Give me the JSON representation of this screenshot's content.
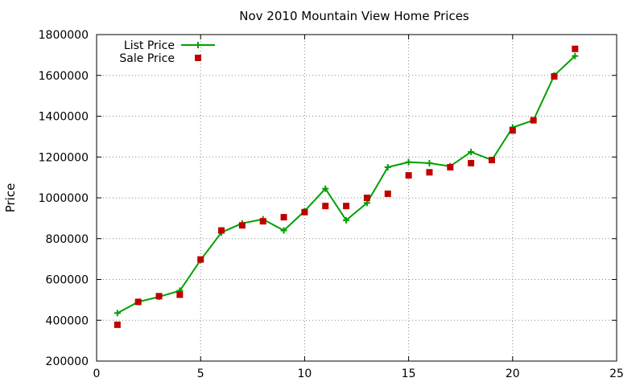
{
  "chart_data": {
    "type": "line",
    "title": "Nov 2010 Mountain View Home Prices",
    "xlabel": "",
    "ylabel": "Price",
    "xlim": [
      0,
      25
    ],
    "ylim": [
      200000,
      1800000
    ],
    "x_ticks": [
      0,
      5,
      10,
      15,
      20,
      25
    ],
    "y_ticks": [
      200000,
      400000,
      600000,
      800000,
      1000000,
      1200000,
      1400000,
      1600000,
      1800000
    ],
    "grid": true,
    "legend_position": "top-left",
    "series": [
      {
        "name": "List Price",
        "style": "line-with-plus-markers",
        "color": "#00a000",
        "x": [
          1,
          2,
          3,
          4,
          5,
          6,
          7,
          8,
          9,
          10,
          11,
          12,
          13,
          14,
          15,
          16,
          17,
          18,
          19,
          20,
          21,
          22,
          23
        ],
        "values": [
          435000,
          490000,
          515000,
          545000,
          695000,
          830000,
          875000,
          895000,
          840000,
          935000,
          1045000,
          890000,
          975000,
          1150000,
          1175000,
          1170000,
          1155000,
          1225000,
          1185000,
          1345000,
          1380000,
          1600000,
          1695000
        ]
      },
      {
        "name": "Sale Price",
        "style": "square-markers",
        "color": "#c00000",
        "x": [
          1,
          2,
          3,
          4,
          5,
          6,
          7,
          8,
          9,
          10,
          11,
          12,
          13,
          14,
          15,
          16,
          17,
          18,
          19,
          20,
          21,
          22,
          23
        ],
        "values": [
          378000,
          490000,
          518000,
          525000,
          698000,
          840000,
          865000,
          885000,
          905000,
          930000,
          960000,
          960000,
          1000000,
          1020000,
          1110000,
          1125000,
          1150000,
          1170000,
          1185000,
          1330000,
          1380000,
          1595000,
          1730000
        ]
      }
    ]
  }
}
